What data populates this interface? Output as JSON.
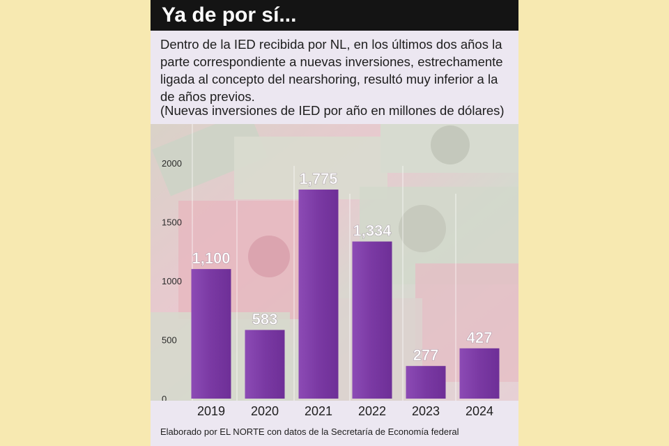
{
  "header": {
    "title": "Ya de por sí..."
  },
  "description": "Dentro de la IED recibida por NL, en los últimos dos años la parte correspondiente a nuevas inversiones, estrechamente ligada al concepto del nearshoring, resultó muy inferior a la de años previos.",
  "units_note": "(Nuevas inversiones de IED por año en millones de dólares)",
  "footer": "Elaborado por EL NORTE con datos de la Secretaría de Economía federal",
  "colors": {
    "bar": "#7f3fa8",
    "bar_light": "#9a5cc1",
    "header_bg": "#141414",
    "page_bg": "#f7e9b1",
    "card_bg": "#ece7f1",
    "label": "#ffffff"
  },
  "chart_data": {
    "type": "bar",
    "categories": [
      "2019",
      "2020",
      "2021",
      "2022",
      "2023",
      "2024"
    ],
    "values": [
      1100,
      583,
      1775,
      1334,
      277,
      427
    ],
    "value_labels": [
      "1,100",
      "583",
      "1,775",
      "1,334",
      "277",
      "427"
    ],
    "y_ticks": [
      0,
      500,
      1000,
      1500,
      2000
    ],
    "ylim": [
      0,
      2000
    ],
    "xlabel": "",
    "ylabel": "",
    "grid": true,
    "legend": "none"
  }
}
